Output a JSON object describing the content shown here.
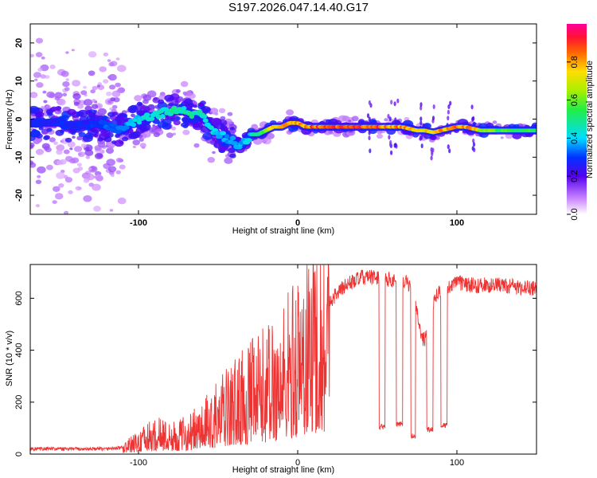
{
  "title": "S197.2026.047.14.40.G17",
  "chart_data": [
    {
      "type": "heatmap",
      "title": "S197.2026.047.14.40.G17",
      "xlabel": "Height of straight line (km)",
      "ylabel": "Frequency (Hz)",
      "xlim": [
        -168,
        150
      ],
      "ylim": [
        -25,
        25
      ],
      "xticks": [
        -100,
        0,
        100
      ],
      "yticks": [
        -20,
        -10,
        0,
        10,
        20
      ],
      "colorbar": {
        "label": "Normalized spectral amplitude",
        "range": [
          0,
          1
        ],
        "ticks": [
          0.0,
          0.2,
          0.4,
          0.6,
          0.8
        ]
      },
      "ridge": {
        "x": [
          -165,
          -150,
          -140,
          -130,
          -120,
          -110,
          -100,
          -90,
          -80,
          -70,
          -60,
          -55,
          -50,
          -45,
          -40,
          -35,
          -30,
          -25,
          -20,
          -15,
          -10,
          -5,
          0,
          5,
          10,
          20,
          30,
          40,
          45,
          50,
          55,
          60,
          65,
          70,
          75,
          80,
          85,
          90,
          95,
          100,
          105,
          110,
          115,
          120,
          130,
          140,
          150
        ],
        "y": [
          -1,
          -1,
          -2,
          -1,
          -2,
          -3,
          0,
          1,
          2,
          2,
          1,
          -2,
          -4,
          -5,
          -6,
          -7,
          -4,
          -4,
          -3,
          -2,
          -2,
          -1,
          -1,
          -2,
          -2,
          -2,
          -2,
          -2,
          -2,
          -2,
          -2,
          -2,
          -2,
          -2.5,
          -3,
          -3,
          -3.5,
          -3,
          -2.5,
          -2,
          -2,
          -2.5,
          -3,
          -3,
          -3,
          -3,
          -3
        ],
        "amplitude": [
          0.3,
          0.3,
          0.3,
          0.3,
          0.35,
          0.35,
          0.45,
          0.5,
          0.5,
          0.5,
          0.5,
          0.45,
          0.45,
          0.4,
          0.4,
          0.4,
          0.45,
          0.55,
          0.7,
          0.8,
          0.85,
          0.85,
          0.85,
          0.9,
          0.95,
          0.98,
          0.98,
          0.98,
          0.95,
          0.95,
          0.9,
          0.9,
          0.9,
          0.85,
          0.85,
          0.85,
          0.75,
          0.85,
          0.85,
          0.9,
          0.9,
          0.85,
          0.75,
          0.65,
          0.6,
          0.6,
          0.6
        ]
      }
    },
    {
      "type": "line",
      "xlabel": "Height of straight line (km)",
      "ylabel": "SNR (10 * v/v)",
      "xlim": [
        -168,
        150
      ],
      "ylim": [
        0,
        730
      ],
      "xticks": [
        -100,
        0,
        100
      ],
      "yticks": [
        0,
        200,
        400,
        600
      ],
      "color": "#ee3333",
      "envelope": {
        "x": [
          -168,
          -150,
          -120,
          -110,
          -105,
          -95,
          -85,
          -80,
          -70,
          -60,
          -50,
          -40,
          -30,
          -20,
          -10,
          0,
          10,
          20,
          30,
          40,
          50,
          60,
          70,
          80,
          90,
          100,
          110,
          120,
          130,
          140,
          150
        ],
        "y": [
          20,
          20,
          20,
          25,
          40,
          70,
          90,
          70,
          90,
          120,
          170,
          220,
          260,
          300,
          350,
          430,
          520,
          590,
          650,
          680,
          680,
          670,
          660,
          620,
          630,
          660,
          650,
          650,
          650,
          640,
          640
        ]
      },
      "dropouts": [
        {
          "x": [
            51,
            55
          ],
          "value": 105
        },
        {
          "x": [
            62,
            66
          ],
          "value": 115
        },
        {
          "x": [
            71,
            74
          ],
          "value": 70
        },
        {
          "x": [
            81,
            85
          ],
          "value": 95
        },
        {
          "x": [
            90,
            94
          ],
          "value": 110
        }
      ],
      "dip": {
        "center": 79,
        "width": 5,
        "depth": 180
      }
    }
  ]
}
